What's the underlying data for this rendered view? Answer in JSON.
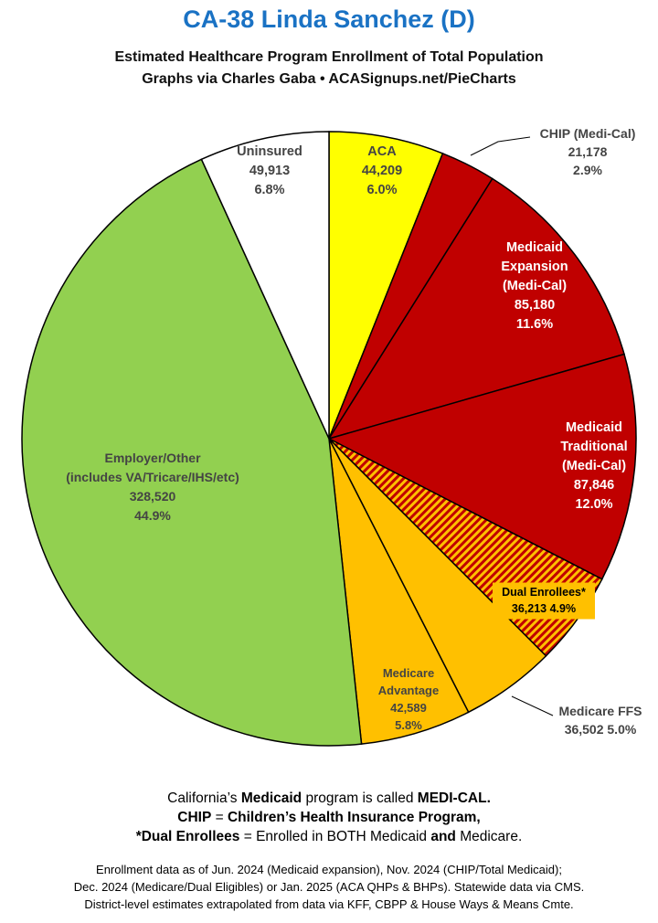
{
  "title": "CA-38 Linda Sanchez (D)",
  "subtitle_line1": "Estimated Healthcare Program Enrollment of Total Population",
  "subtitle_line2": "Graphs via Charles Gaba  •  ACASignups.net/PieCharts",
  "chart_data": {
    "type": "pie",
    "start_angle_deg": 0,
    "direction": "clockwise",
    "slices": [
      {
        "label": "ACA",
        "value": 44209,
        "value_label": "44,209",
        "percent": "6.0%",
        "color": "#ffff00",
        "label_color": "#444444",
        "hatched": false
      },
      {
        "label": "CHIP (Medi-Cal)",
        "value": 21178,
        "value_label": "21,178",
        "percent": "2.9%",
        "color": "#c00000",
        "label_color": "#444444",
        "hatched": false
      },
      {
        "label": "Medicaid Expansion (Medi-Cal)",
        "value": 85180,
        "value_label": "85,180",
        "percent": "11.6%",
        "color": "#c00000",
        "label_color": "#ffffff",
        "hatched": false
      },
      {
        "label": "Medicaid Traditional (Medi-Cal)",
        "value": 87846,
        "value_label": "87,846",
        "percent": "12.0%",
        "color": "#c00000",
        "label_color": "#ffffff",
        "hatched": false
      },
      {
        "label": "Dual Enrollees*",
        "value": 36213,
        "value_label": "36,213",
        "percent": "4.9%",
        "color": "#c00000",
        "label_color": "#000000",
        "hatched": true,
        "hatch_color": "#ffc000"
      },
      {
        "label": "Medicare FFS",
        "value": 36502,
        "value_label": "36,502",
        "percent": "5.0%",
        "color": "#ffc000",
        "label_color": "#444444",
        "hatched": false
      },
      {
        "label": "Medicare Advantage",
        "value": 42589,
        "value_label": "42,589",
        "percent": "5.8%",
        "color": "#ffc000",
        "label_color": "#444444",
        "hatched": false
      },
      {
        "label": "Employer/Other (includes VA/Tricare/IHS/etc)",
        "value": 328520,
        "value_label": "328,520",
        "percent": "44.9%",
        "color": "#92d050",
        "label_color": "#444444",
        "hatched": false
      },
      {
        "label": "Uninsured",
        "value": 49913,
        "value_label": "49,913",
        "percent": "6.8%",
        "color": "#ffffff",
        "label_color": "#444444",
        "hatched": false
      }
    ]
  },
  "labels": {
    "aca": [
      "ACA",
      "44,209",
      "6.0%"
    ],
    "chip": [
      "CHIP (Medi-Cal)",
      "21,178",
      "2.9%"
    ],
    "expansion": [
      "Medicaid",
      "Expansion",
      "(Medi-Cal)",
      "85,180",
      "11.6%"
    ],
    "traditional": [
      "Medicaid",
      "Traditional",
      "(Medi-Cal)",
      "87,846",
      "12.0%"
    ],
    "dual": [
      "Dual Enrollees*",
      "36,213 4.9%"
    ],
    "ffs": [
      "Medicare FFS",
      "36,502 5.0%"
    ],
    "advantage": [
      "Medicare",
      "Advantage",
      "42,589",
      "5.8%"
    ],
    "employer": [
      "Employer/Other",
      "(includes VA/Tricare/IHS/etc)",
      "328,520",
      "44.9%"
    ],
    "uninsured": [
      "Uninsured",
      "49,913",
      "6.8%"
    ]
  },
  "footer": {
    "l1_a": "California’s ",
    "l1_b": "Medicaid",
    "l1_c": " program is called ",
    "l1_d": "MEDI-CAL.",
    "l2_a": "CHIP",
    "l2_b": " = ",
    "l2_c": "Children’s Health Insurance Program,",
    "l3_a": "*Dual Enrollees",
    "l3_b": " = Enrolled in BOTH Medicaid ",
    "l3_c": "and",
    "l3_d": " Medicare."
  },
  "notes": [
    "Enrollment data as of Jun. 2024 (Medicaid expansion), Nov. 2024 (CHIP/Total Medicaid);",
    "Dec. 2024 (Medicare/Dual Eligibles) or Jan. 2025 (ACA QHPs & BHPs). Statewide data via CMS.",
    "District-level estimates extrapolated from data via KFF, CBPP & House Ways & Means Cmte."
  ]
}
